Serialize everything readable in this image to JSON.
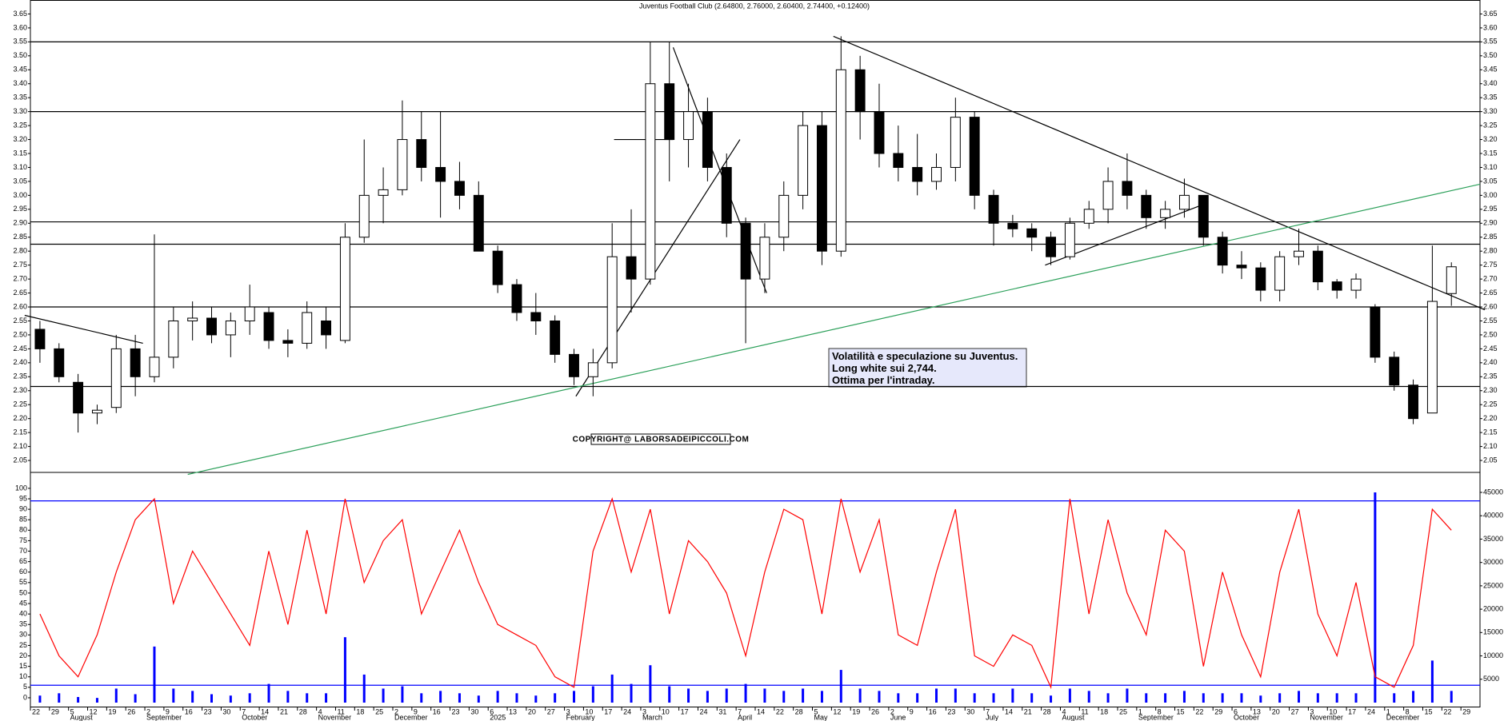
{
  "chart_data": {
    "type": "candlestick",
    "title": "Juventus Football Club (2.64800, 2.76000, 2.60400, 2.74400, +0.12400)",
    "categories": [
      "22",
      "29",
      "5",
      "12",
      "19",
      "26",
      "2",
      "9",
      "16",
      "23",
      "30",
      "7",
      "14",
      "21",
      "28",
      "4",
      "11",
      "18",
      "25",
      "2",
      "9",
      "16",
      "23",
      "30",
      "6",
      "13",
      "20",
      "27",
      "3",
      "10",
      "17",
      "24",
      "3",
      "10",
      "17",
      "24",
      "31",
      "7",
      "14",
      "22",
      "28",
      "5",
      "12",
      "19",
      "26",
      "2",
      "9",
      "16",
      "23",
      "30",
      "7",
      "14",
      "21",
      "28",
      "4",
      "11",
      "18",
      "25",
      "1",
      "8",
      "15",
      "22",
      "29",
      "6",
      "13",
      "20",
      "27",
      "3",
      "10",
      "17",
      "24",
      "1",
      "8",
      "15",
      "22",
      "29"
    ],
    "months": [
      "August",
      "September",
      "October",
      "November",
      "December",
      "2025",
      "February",
      "March",
      "April",
      "May",
      "June",
      "July",
      "August",
      "September",
      "October",
      "November",
      "December"
    ],
    "month_index": [
      2,
      6,
      11,
      15,
      19,
      24,
      28,
      32,
      37,
      41,
      45,
      50,
      54,
      58,
      63,
      67,
      71
    ],
    "open": [
      2.52,
      2.45,
      2.33,
      2.22,
      2.24,
      2.45,
      2.35,
      2.42,
      2.55,
      2.56,
      2.5,
      2.55,
      2.58,
      2.48,
      2.47,
      2.55,
      2.48,
      2.85,
      3.0,
      3.02,
      3.2,
      3.1,
      3.05,
      3.0,
      2.8,
      2.68,
      2.58,
      2.55,
      2.43,
      2.35,
      2.4,
      2.78,
      2.7,
      3.4,
      3.2,
      3.3,
      3.1,
      2.9,
      2.7,
      2.85,
      3.0,
      3.25,
      2.8,
      3.45,
      3.3,
      3.15,
      3.1,
      3.05,
      3.1,
      3.28,
      3.0,
      2.9,
      2.88,
      2.85,
      2.78,
      2.9,
      2.95,
      3.05,
      3.0,
      2.92,
      2.95,
      3.0,
      2.85,
      2.75,
      2.74,
      2.66,
      2.78,
      2.8,
      2.69,
      2.66,
      2.6,
      2.42,
      2.32,
      2.22,
      2.648,
      null
    ],
    "high": [
      2.55,
      2.47,
      2.36,
      2.25,
      2.5,
      2.5,
      2.86,
      2.6,
      2.62,
      2.6,
      2.58,
      2.68,
      2.6,
      2.52,
      2.62,
      2.6,
      2.9,
      3.2,
      3.1,
      3.34,
      3.3,
      3.3,
      3.12,
      3.05,
      2.82,
      2.7,
      2.65,
      2.57,
      2.45,
      2.45,
      2.9,
      2.95,
      3.55,
      3.55,
      3.4,
      3.35,
      3.15,
      2.92,
      2.9,
      3.05,
      3.3,
      3.3,
      3.57,
      3.5,
      3.4,
      3.25,
      3.22,
      3.15,
      3.35,
      3.3,
      3.02,
      2.93,
      2.9,
      2.87,
      2.92,
      2.98,
      3.1,
      3.15,
      3.02,
      2.98,
      3.06,
      3.0,
      2.87,
      2.8,
      2.76,
      2.8,
      2.88,
      2.82,
      2.7,
      2.72,
      2.61,
      2.44,
      2.34,
      2.82,
      2.76,
      null
    ],
    "low": [
      2.4,
      2.33,
      2.15,
      2.18,
      2.22,
      2.28,
      2.33,
      2.38,
      2.48,
      2.47,
      2.42,
      2.5,
      2.45,
      2.42,
      2.45,
      2.45,
      2.47,
      2.83,
      2.9,
      3.0,
      3.05,
      2.92,
      2.95,
      2.8,
      2.65,
      2.55,
      2.5,
      2.4,
      2.32,
      2.28,
      2.38,
      2.58,
      2.68,
      3.05,
      3.1,
      3.05,
      2.85,
      2.47,
      2.65,
      2.8,
      2.95,
      2.75,
      2.78,
      3.2,
      3.1,
      3.05,
      3.0,
      3.02,
      3.05,
      2.95,
      2.82,
      2.85,
      2.8,
      2.75,
      2.77,
      2.88,
      2.9,
      2.95,
      2.88,
      2.88,
      2.92,
      2.82,
      2.72,
      2.7,
      2.62,
      2.62,
      2.75,
      2.66,
      2.63,
      2.63,
      2.4,
      2.3,
      2.18,
      2.22,
      2.604,
      null
    ],
    "close": [
      2.45,
      2.35,
      2.22,
      2.23,
      2.45,
      2.35,
      2.42,
      2.55,
      2.56,
      2.5,
      2.55,
      2.6,
      2.48,
      2.47,
      2.58,
      2.5,
      2.85,
      3.0,
      3.02,
      3.2,
      3.1,
      3.05,
      3.0,
      2.8,
      2.68,
      2.58,
      2.55,
      2.43,
      2.35,
      2.4,
      2.78,
      2.7,
      3.4,
      3.2,
      3.3,
      3.1,
      2.9,
      2.7,
      2.85,
      3.0,
      3.25,
      2.8,
      3.45,
      3.3,
      3.15,
      3.1,
      3.05,
      3.1,
      3.28,
      3.0,
      2.9,
      2.88,
      2.85,
      2.78,
      2.9,
      2.95,
      3.05,
      3.0,
      2.92,
      2.95,
      3.0,
      2.85,
      2.75,
      2.74,
      2.66,
      2.78,
      2.8,
      2.69,
      2.66,
      2.7,
      2.42,
      2.32,
      2.2,
      2.62,
      2.744,
      null
    ],
    "up_color": "#ffffff",
    "down_color": "#000000",
    "ylim": [
      2.01,
      3.7
    ],
    "yticks": [
      2.05,
      {
        "value": 2.1,
        "label": "2.10"
      },
      2.15,
      {
        "value": 2.2,
        "label": "2.20"
      },
      2.25,
      {
        "value": 2.3,
        "label": "2.30"
      },
      2.35,
      {
        "value": 2.4,
        "label": "2.40"
      },
      2.45,
      {
        "value": 2.5,
        "label": "2.50"
      },
      2.55,
      {
        "value": 2.6,
        "label": "2.60"
      },
      2.65,
      {
        "value": 2.7,
        "label": "2.70"
      },
      2.75,
      {
        "value": 2.8,
        "label": "2.80"
      },
      2.85,
      {
        "value": 2.9,
        "label": "2.90"
      },
      2.95,
      {
        "value": 3,
        "label": "3.00"
      },
      3.05,
      {
        "value": 3.1,
        "label": "3.10"
      },
      3.15,
      {
        "value": 3.2,
        "label": "3.20"
      },
      3.25,
      {
        "value": 3.3,
        "label": "3.30"
      },
      3.35,
      {
        "value": 3.4,
        "label": "3.40"
      },
      3.45,
      {
        "value": 3.5,
        "label": "3.50"
      },
      3.55,
      {
        "value": 3.6,
        "label": "3.60"
      },
      3.65
    ],
    "hlines": [
      3.55,
      3.3,
      2.905,
      2.825,
      2.6,
      2.315
    ],
    "trendlines": [
      {
        "x": [
          -0.8,
          5.4
        ],
        "y": [
          2.57,
          2.47
        ],
        "color": "#000000"
      },
      {
        "x": [
          28.1,
          36.7
        ],
        "y": [
          2.28,
          3.2
        ],
        "color": "#000000"
      },
      {
        "x": [
          33.2,
          38.1
        ],
        "y": [
          3.53,
          2.65
        ],
        "color": "#000000"
      },
      {
        "x": [
          30.1,
          33.2
        ],
        "y": [
          3.2,
          3.2
        ],
        "color": "#000000"
      },
      {
        "x": [
          41.6,
          75.75
        ],
        "y": [
          3.57,
          2.59
        ],
        "color": "#000000"
      },
      {
        "x": [
          52.7,
          61.1
        ],
        "y": [
          2.75,
          2.97
        ],
        "color": "#000000"
      },
      {
        "x": [
          7.75,
          75.5
        ],
        "y": [
          2.0,
          3.04
        ],
        "color": "#2ca05a"
      }
    ],
    "annotation": [
      "Volatilità e speculazione su Juventus.",
      "Long white sui 2,744.",
      "Ottima per l'intraday."
    ],
    "copyright": "COPYRIGHT@ LABORSADEIPICCOLI.COM",
    "lower": {
      "oscillator": {
        "color": "#ff0000",
        "values": [
          40,
          20,
          10,
          30,
          60,
          85,
          95,
          45,
          70,
          55,
          40,
          25,
          70,
          35,
          80,
          40,
          95,
          55,
          75,
          85,
          40,
          60,
          80,
          55,
          35,
          30,
          25,
          10,
          5,
          70,
          95,
          60,
          90,
          40,
          75,
          65,
          50,
          20,
          60,
          90,
          85,
          40,
          95,
          60,
          85,
          30,
          25,
          60,
          90,
          20,
          15,
          30,
          25,
          5,
          95,
          40,
          85,
          50,
          30,
          80,
          70,
          15,
          60,
          30,
          10,
          60,
          90,
          40,
          20,
          55,
          10,
          5,
          25,
          90,
          80,
          null
        ]
      },
      "volume": {
        "color": "#0000ff",
        "axis": "y2",
        "values": [
          1500,
          2000,
          1200,
          1000,
          3000,
          1800,
          12000,
          3000,
          2500,
          1800,
          1500,
          2000,
          4000,
          2500,
          2000,
          2000,
          14000,
          6000,
          3000,
          3500,
          2000,
          2500,
          2000,
          1500,
          2500,
          2000,
          1500,
          2000,
          2500,
          3500,
          6000,
          4000,
          8000,
          3500,
          3000,
          2500,
          3000,
          4000,
          3000,
          2500,
          3000,
          2500,
          7000,
          3000,
          2500,
          2000,
          2000,
          3000,
          3000,
          2000,
          2000,
          3000,
          2000,
          1500,
          3000,
          2500,
          2000,
          3000,
          2000,
          2000,
          2500,
          2000,
          2000,
          2000,
          1500,
          2000,
          2500,
          2000,
          2000,
          2000,
          45000,
          2000,
          2500,
          9000,
          2500,
          null
        ]
      },
      "bands": [
        94,
        6
      ],
      "band_color": "#0000ff",
      "ylim": [
        -4.6,
        107.6
      ],
      "yticks": [
        0,
        5,
        10,
        15,
        20,
        25,
        30,
        35,
        40,
        45,
        50,
        55,
        60,
        65,
        70,
        75,
        80,
        85,
        90,
        95,
        100
      ],
      "y2lim": [
        -1030,
        49280
      ],
      "y2ticks": [
        5000,
        10000,
        15000,
        20000,
        25000,
        30000,
        35000,
        40000,
        45000
      ]
    }
  }
}
